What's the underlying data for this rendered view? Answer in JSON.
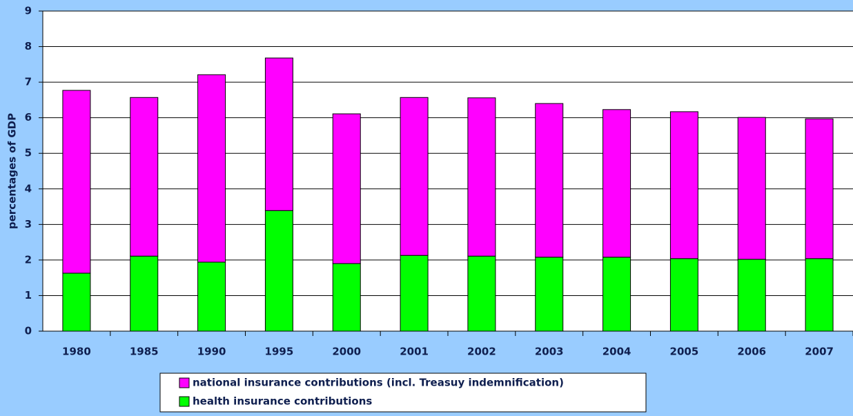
{
  "chart_data": {
    "type": "stacked_bar",
    "y_label": "percentages of GDP",
    "categories": [
      "1980",
      "1985",
      "1990",
      "1995",
      "2000",
      "2001",
      "2002",
      "2003",
      "2004",
      "2005",
      "2006",
      "2007"
    ],
    "series": [
      {
        "name": "health insurance contributions",
        "color": "#00ff00",
        "values": [
          1.63,
          2.11,
          1.94,
          3.39,
          1.9,
          2.13,
          2.11,
          2.08,
          2.08,
          2.04,
          2.02,
          2.04
        ]
      },
      {
        "name": "national insurance contributions (incl. Treasuy indemnification)",
        "color": "#ff00ff",
        "values": [
          5.14,
          4.46,
          5.27,
          4.29,
          4.21,
          4.44,
          4.45,
          4.32,
          4.15,
          4.13,
          3.99,
          3.93
        ]
      }
    ],
    "ylim": [
      0,
      9
    ],
    "yticks": [
      0,
      1,
      2,
      3,
      4,
      5,
      6,
      7,
      8,
      9
    ],
    "grid": true
  }
}
